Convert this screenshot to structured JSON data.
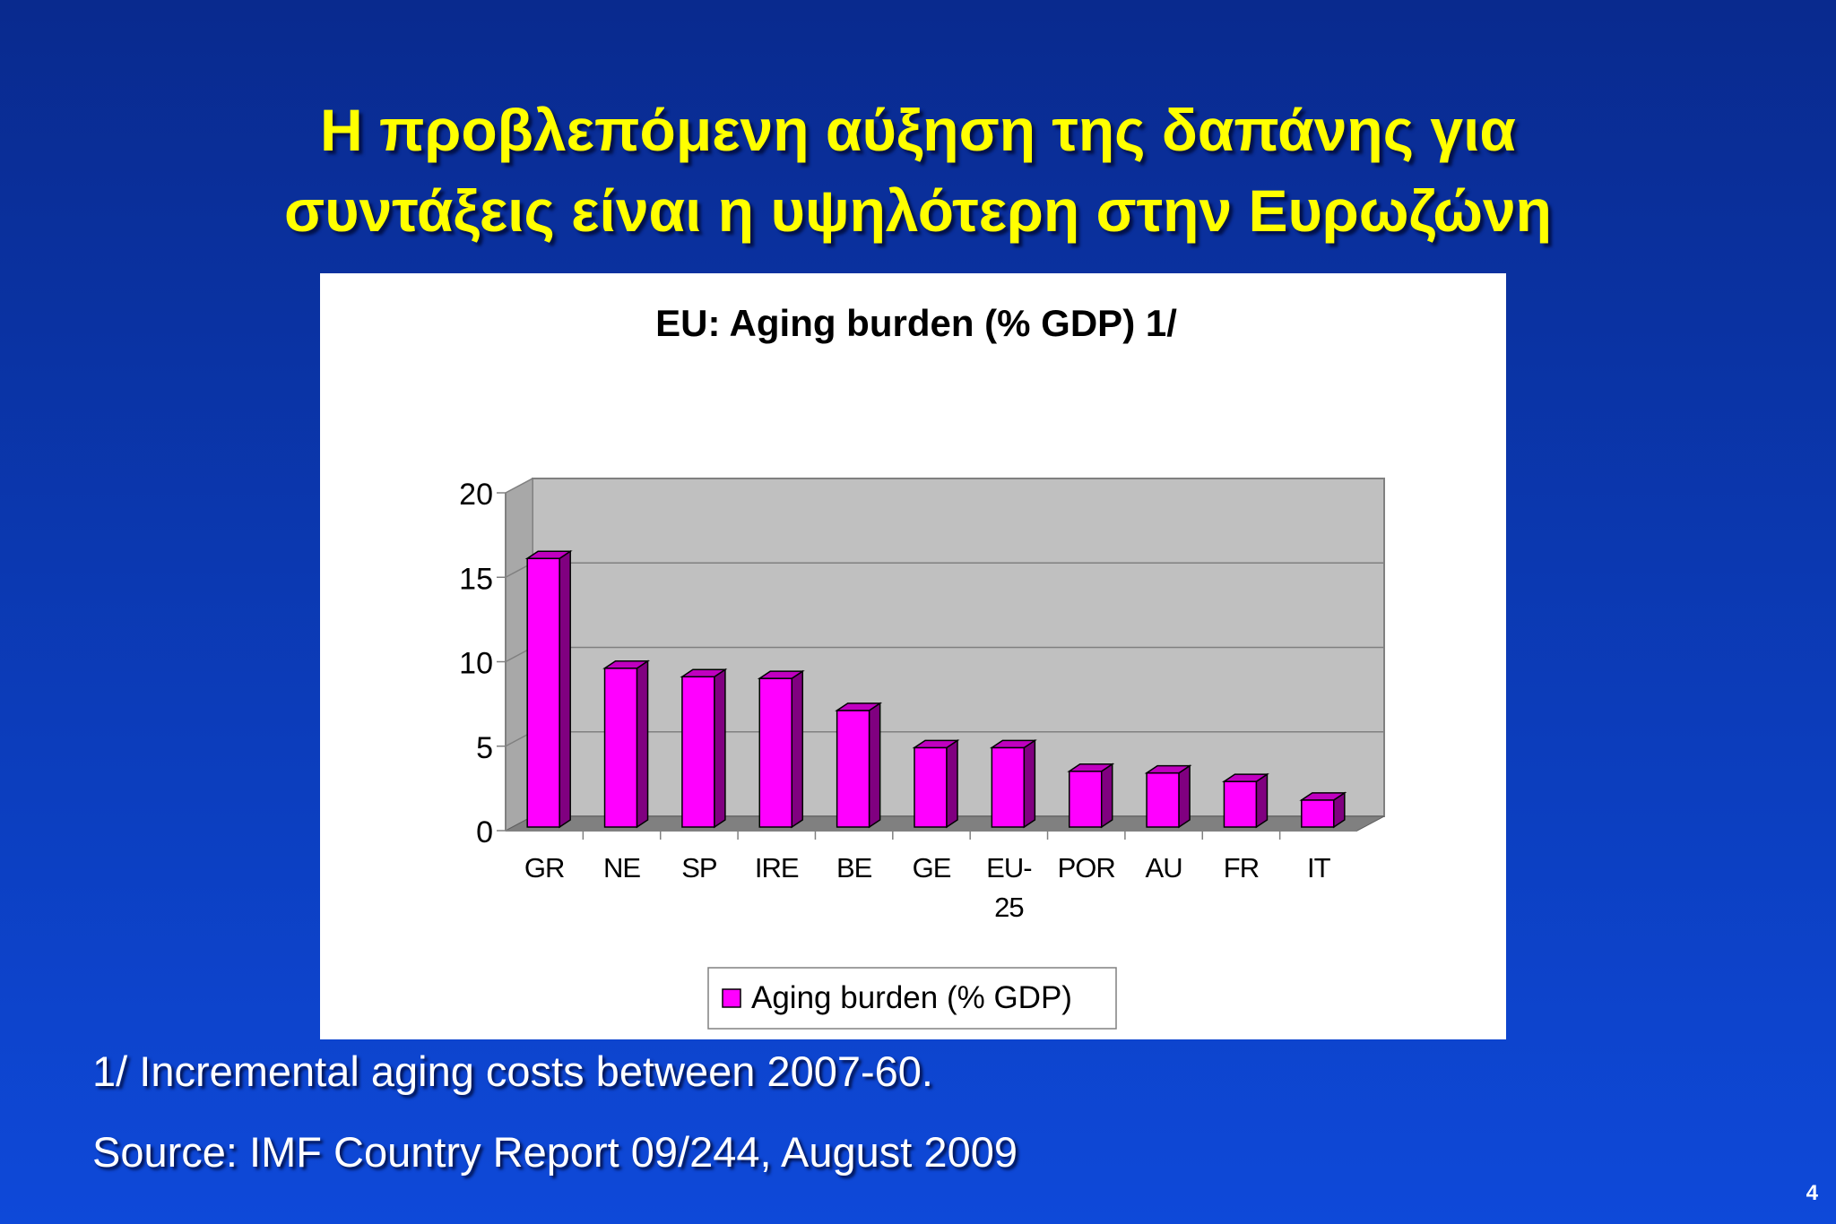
{
  "slide": {
    "title_line1": "Η προβλεπόμενη αύξηση της δαπάνης για",
    "title_line2": "συντάξεις είναι η υψηλότερη στην Ευρωζώνη",
    "footnote": "1/ Incremental aging costs between 2007-60.",
    "source": "Source: IMF Country Report 09/244, August 2009",
    "page_number": "4"
  },
  "colors": {
    "title": "#ffff00",
    "bar_front": "#ff00ff",
    "bar_side": "#800080",
    "plot_wall": "#c0c0c0",
    "plot_floor": "#808080"
  },
  "chart_data": {
    "type": "bar",
    "title": "EU: Aging burden (% GDP) 1/",
    "xlabel": "",
    "ylabel": "",
    "categories": [
      "GR",
      "NE",
      "SP",
      "IRE",
      "BE",
      "GE",
      "EU-25",
      "POR",
      "AU",
      "FR",
      "IT"
    ],
    "category_label_lines": [
      [
        "GR"
      ],
      [
        "NE"
      ],
      [
        "SP"
      ],
      [
        "IRE"
      ],
      [
        "BE"
      ],
      [
        "GE"
      ],
      [
        "EU-",
        "25"
      ],
      [
        "POR"
      ],
      [
        "AU"
      ],
      [
        "FR"
      ],
      [
        "IT"
      ]
    ],
    "series": [
      {
        "name": "Aging burden (% GDP)",
        "values": [
          15.9,
          9.4,
          8.9,
          8.8,
          6.9,
          4.7,
          4.7,
          3.3,
          3.2,
          2.7,
          1.6
        ]
      }
    ],
    "ylim": [
      0,
      20
    ],
    "yticks": [
      "0",
      "5",
      "10",
      "15",
      "20"
    ],
    "grid": true,
    "legend": "bottom",
    "three_d": true
  }
}
